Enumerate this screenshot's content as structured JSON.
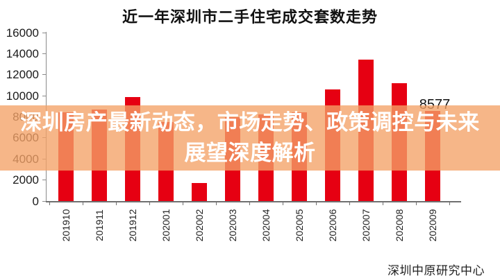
{
  "page": {
    "background": "#ffffff"
  },
  "chart": {
    "title": "近一年深圳市二手住宅成交套数走势",
    "source": "深圳中原研究中心",
    "bar_color": "#e60012",
    "axis_color": "#6f6f6f",
    "annotation": {
      "text": "8577",
      "category": "202009"
    }
  },
  "overlay": {
    "line1": "深圳房产最新动态，市场走势、政策调控与未来",
    "line2": "展望深度解析",
    "background": "rgba(244,162,102,0.78)",
    "text_color": "#ffffff"
  },
  "chart_data": {
    "type": "bar",
    "title": "近一年深圳市二手住宅成交套数走势",
    "series_name": "二手住宅成交套数",
    "categories": [
      "201910",
      "201911",
      "201912",
      "202001",
      "202002",
      "202003",
      "202004",
      "202005",
      "202006",
      "202007",
      "202008",
      "202009"
    ],
    "values": [
      8400,
      8700,
      9900,
      7500,
      1700,
      8000,
      8200,
      8400,
      10600,
      13400,
      11200,
      8577
    ],
    "y_ticks": [
      0,
      2000,
      4000,
      6000,
      8000,
      10000,
      12000,
      14000,
      16000
    ],
    "ylim": [
      0,
      16000
    ],
    "xlabel": "",
    "ylabel": "",
    "grid": false,
    "legend": false,
    "bar_color": "#e60012",
    "data_labels": {
      "202009": 8577
    },
    "source": "深圳中原研究中心"
  }
}
